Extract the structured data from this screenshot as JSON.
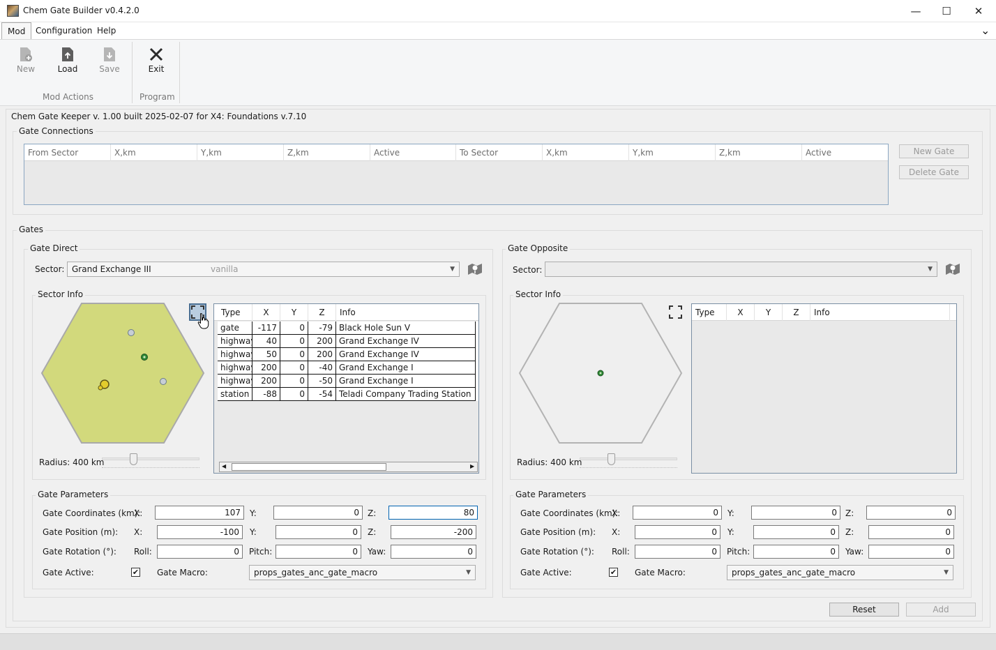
{
  "window": {
    "title": "Chem Gate Builder v0.4.2.0",
    "minimize": "—",
    "maximize": "☐",
    "close": "✕"
  },
  "menu": {
    "items": [
      "Mod",
      "Configuration",
      "Help"
    ],
    "expand": "⌄"
  },
  "ribbon": {
    "buttons": {
      "new": "New",
      "load": "Load",
      "save": "Save",
      "exit": "Exit"
    },
    "groups": {
      "mod_actions": "Mod Actions",
      "program": "Program"
    }
  },
  "status": "Chem Gate Keeper v. 1.00 built 2025-02-07 for X4: Foundations v.7.10",
  "gate_connections": {
    "title": "Gate Connections",
    "columns": [
      "From Sector",
      "X,km",
      "Y,km",
      "Z,km",
      "Active",
      "To Sector",
      "X,km",
      "Y,km",
      "Z,km",
      "Active"
    ],
    "new_gate": "New Gate",
    "delete_gate": "Delete Gate"
  },
  "gates": {
    "title": "Gates",
    "direct": {
      "title": "Gate Direct",
      "sector_label": "Sector:",
      "sector_value": "Grand Exchange III",
      "sector_source": "vanilla",
      "sector_info": "Sector Info",
      "radius_label": "Radius: 400 km",
      "radius_slider_fraction": 0.33,
      "hex_color": "#d2d97c",
      "table_columns": [
        "Type",
        "X",
        "Y",
        "Z",
        "Info"
      ],
      "table_rows": [
        {
          "type": "gate",
          "x": "-117",
          "y": "0",
          "z": "-79",
          "info": "Black Hole Sun V"
        },
        {
          "type": "highway",
          "x": "40",
          "y": "0",
          "z": "200",
          "info": "Grand Exchange IV"
        },
        {
          "type": "highway",
          "x": "50",
          "y": "0",
          "z": "200",
          "info": "Grand Exchange IV"
        },
        {
          "type": "highway",
          "x": "200",
          "y": "0",
          "z": "-40",
          "info": "Grand Exchange I"
        },
        {
          "type": "highway",
          "x": "200",
          "y": "0",
          "z": "-50",
          "info": "Grand Exchange I"
        },
        {
          "type": "station",
          "x": "-88",
          "y": "0",
          "z": "-54",
          "info": "Teladi Company Trading Station"
        }
      ],
      "params": {
        "title": "Gate Parameters",
        "coords_label": "Gate Coordinates (km):",
        "position_label": "Gate Position (m):",
        "rotation_label": "Gate Rotation (°):",
        "active_label": "Gate Active:",
        "macro_label": "Gate Macro:",
        "x": "X:",
        "y": "Y:",
        "z": "Z:",
        "roll": "Roll:",
        "pitch": "Pitch:",
        "yaw": "Yaw:",
        "coord_x": "107",
        "coord_y": "0",
        "coord_z": "80",
        "pos_x": "-100",
        "pos_y": "0",
        "pos_z": "-200",
        "rot_roll": "0",
        "rot_pitch": "0",
        "rot_yaw": "0",
        "active": "✔",
        "macro": "props_gates_anc_gate_macro"
      }
    },
    "opposite": {
      "title": "Gate Opposite",
      "sector_label": "Sector:",
      "sector_value": "",
      "sector_info": "Sector Info",
      "radius_label": "Radius: 400 km",
      "radius_slider_fraction": 0.33,
      "hex_color": "#efefef",
      "table_columns": [
        "Type",
        "X",
        "Y",
        "Z",
        "Info"
      ],
      "params": {
        "title": "Gate Parameters",
        "coords_label": "Gate Coordinates (km):",
        "position_label": "Gate Position (m):",
        "rotation_label": "Gate Rotation (°):",
        "active_label": "Gate Active:",
        "macro_label": "Gate Macro:",
        "x": "X:",
        "y": "Y:",
        "z": "Z:",
        "roll": "Roll:",
        "pitch": "Pitch:",
        "yaw": "Yaw:",
        "coord_x": "0",
        "coord_y": "0",
        "coord_z": "0",
        "pos_x": "0",
        "pos_y": "0",
        "pos_z": "0",
        "rot_roll": "0",
        "rot_pitch": "0",
        "rot_yaw": "0",
        "active": "✔",
        "macro": "props_gates_anc_gate_macro"
      }
    },
    "reset": "Reset",
    "add": "Add"
  }
}
